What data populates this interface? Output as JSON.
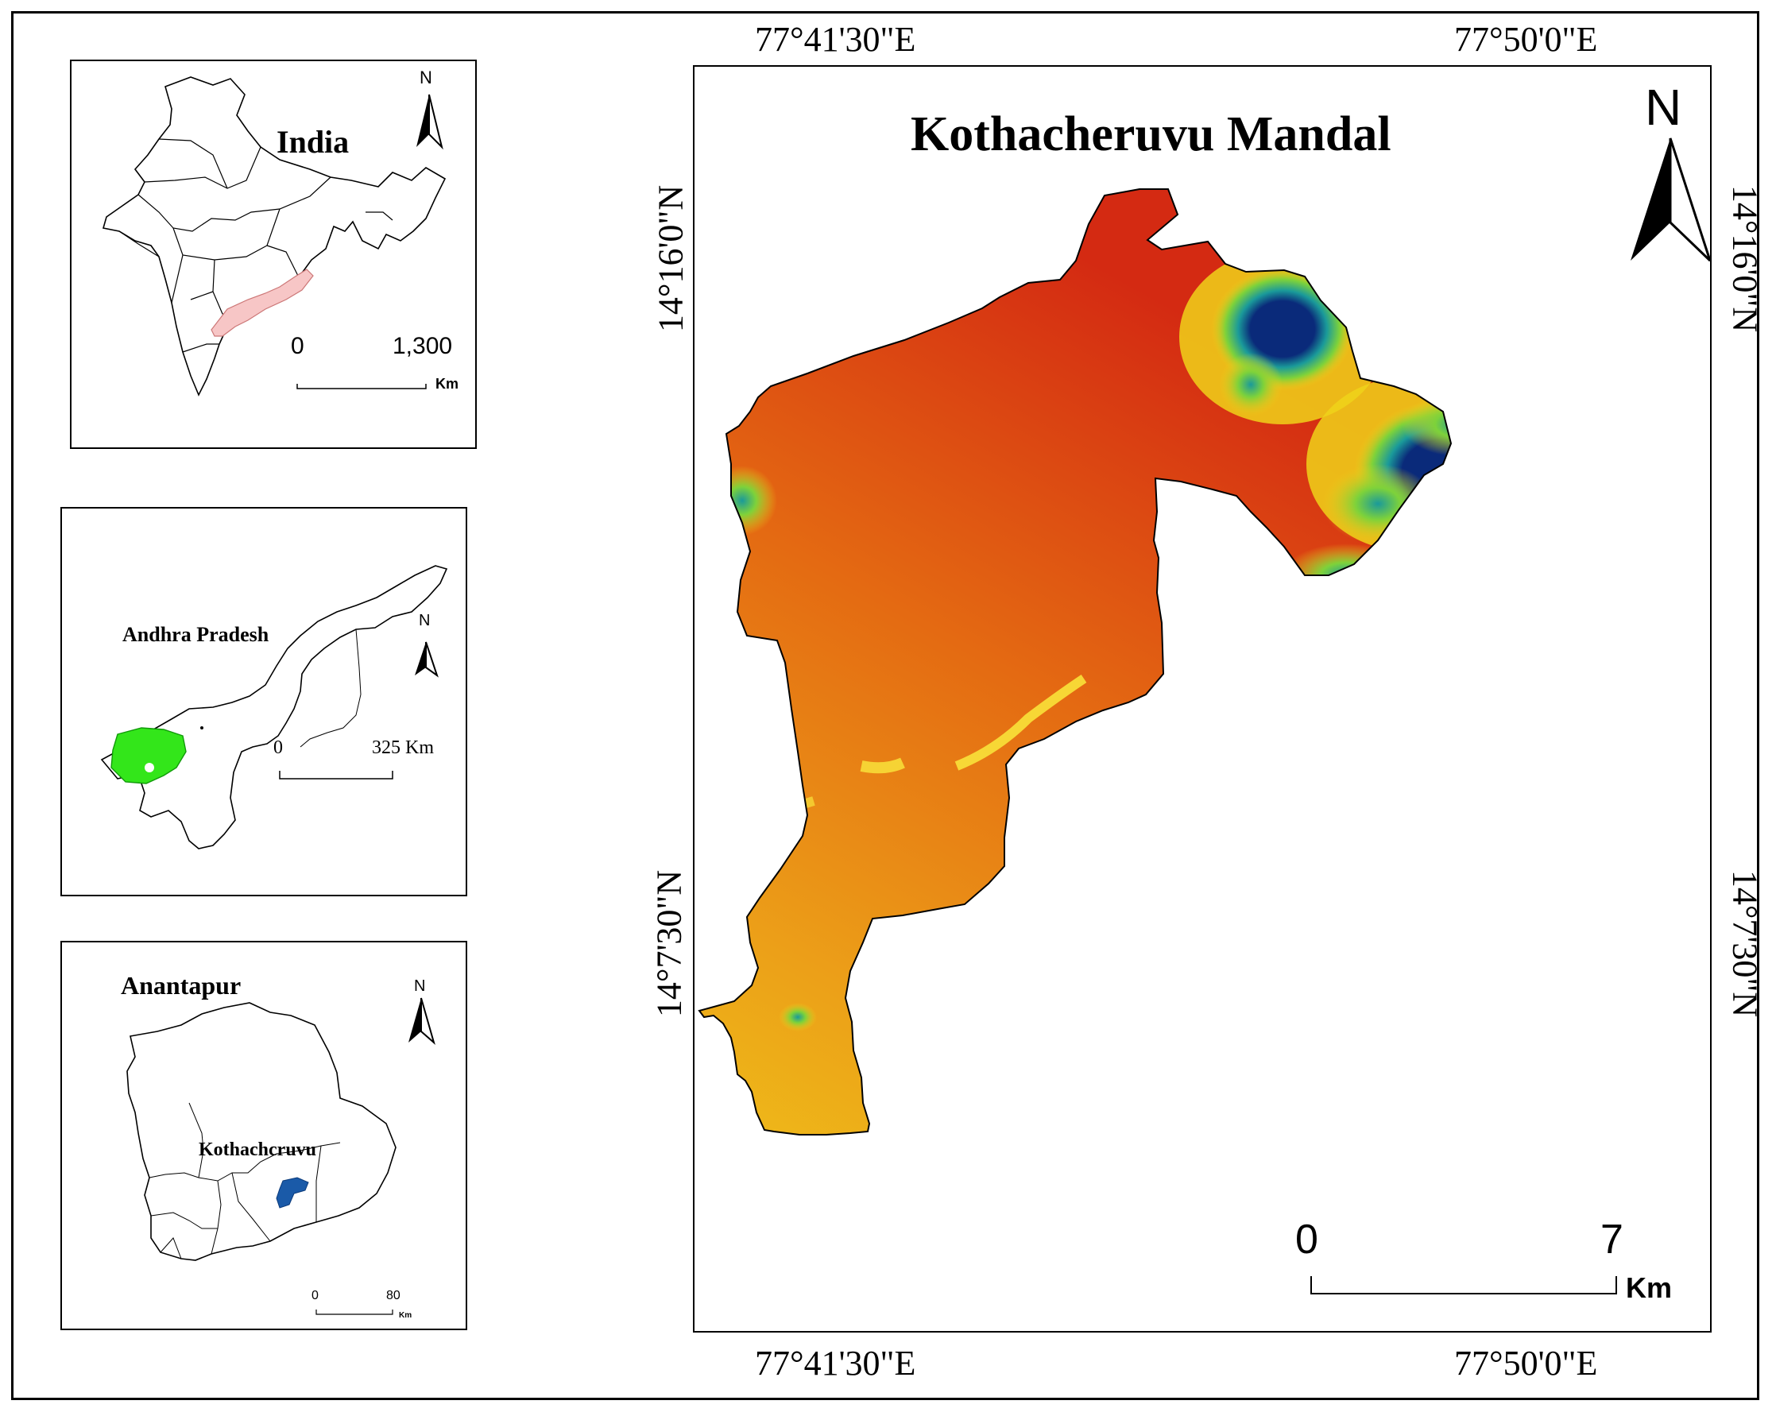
{
  "map_title": "Kothacheruvu Mandal",
  "insets": {
    "india": {
      "title": "India",
      "north": "N",
      "scale_start": "0",
      "scale_end": "1,300",
      "scale_unit": "Km",
      "highlight_color": "#f7c6c6"
    },
    "andhra_pradesh": {
      "title": "Andhra Pradesh",
      "north": "N",
      "scale_start": "0",
      "scale_end": "325 Km",
      "highlight_color": "#33e61a"
    },
    "anantapur": {
      "title": "Anantapur",
      "north": "N",
      "place_label": "Kothachcruvu",
      "scale_start": "0",
      "scale_end": "80",
      "scale_unit": "Km",
      "highlight_color": "#1a5aa8"
    }
  },
  "main_map": {
    "north": "N",
    "scale_start": "0",
    "scale_end": "7",
    "scale_unit": "Km",
    "longitude_labels": [
      "77°41'30\"E",
      "77°50'0\"E"
    ],
    "latitude_labels": [
      "14°16'0\"N",
      "14°7'30\"N"
    ],
    "elevation_colors": [
      "#d42a12",
      "#e46a12",
      "#eca018",
      "#f0d21a",
      "#7ed23a",
      "#1a9a9a",
      "#0a2a7a"
    ]
  }
}
